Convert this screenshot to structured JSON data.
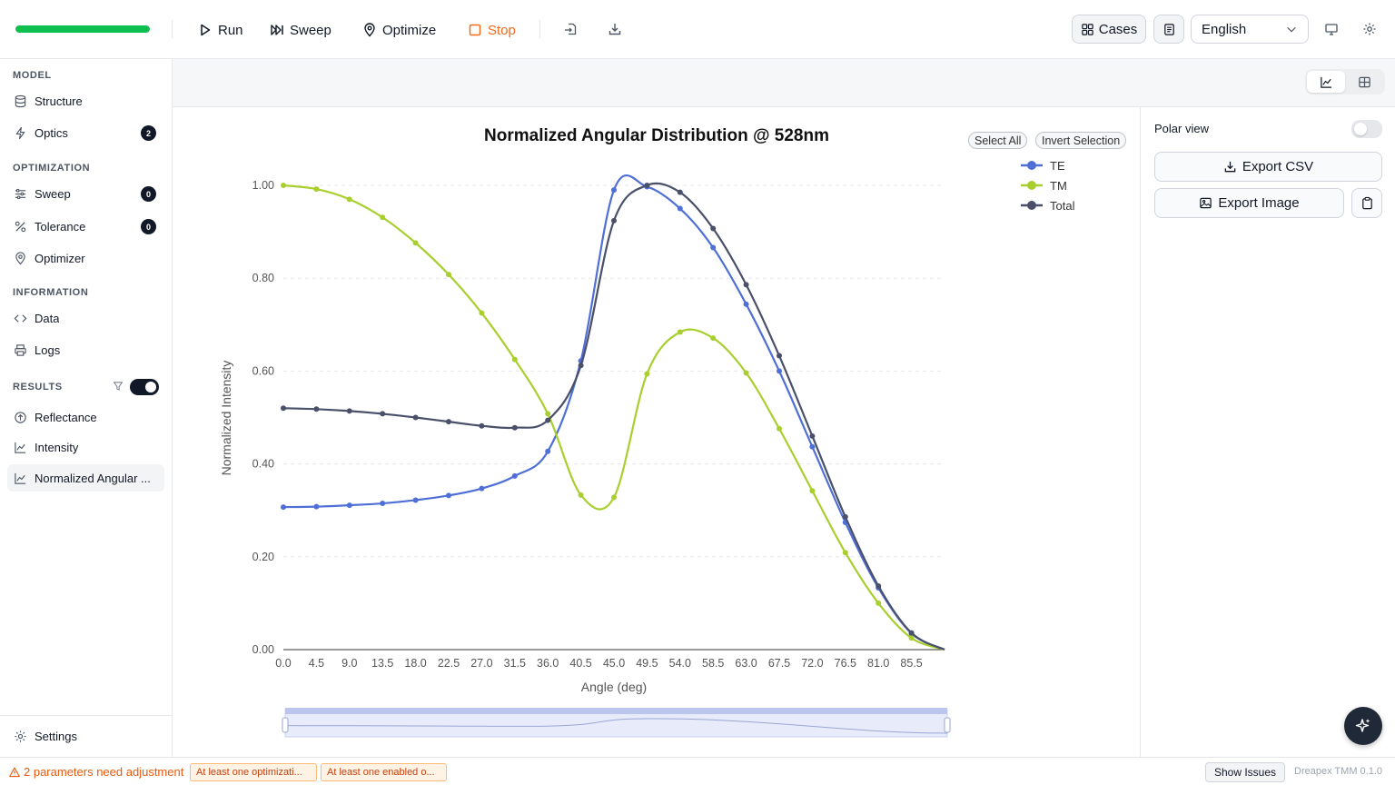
{
  "toolbar": {
    "progress": 1.0,
    "run_label": "Run",
    "sweep_label": "Sweep",
    "optimize_label": "Optimize",
    "stop_label": "Stop",
    "cases_label": "Cases",
    "language": "English"
  },
  "sidebar": {
    "model_heading": "MODEL",
    "structure": "Structure",
    "optics": "Optics",
    "optics_badge": "2",
    "optimization_heading": "OPTIMIZATION",
    "sweep": "Sweep",
    "sweep_badge": "0",
    "tolerance": "Tolerance",
    "tolerance_badge": "0",
    "optimizer": "Optimizer",
    "information_heading": "INFORMATION",
    "data": "Data",
    "logs": "Logs",
    "results_heading": "RESULTS",
    "results_toggle_on": true,
    "reflectance": "Reflectance",
    "intensity": "Intensity",
    "normalized": "Normalized Angular ...",
    "settings": "Settings"
  },
  "chart_controls": {
    "select_all": "Select All",
    "invert_selection": "Invert Selection"
  },
  "right_panel": {
    "polar_view_label": "Polar view",
    "polar_view_on": false,
    "export_csv": "Export CSV",
    "export_image": "Export Image"
  },
  "status_bar": {
    "warning": "2 parameters need adjustment",
    "pill1": "At least one optimizati...",
    "pill2": "At least one enabled o...",
    "show_issues": "Show Issues",
    "version": "Dreapex TMM 0.1.0"
  },
  "colors": {
    "te": "#4f6fd6",
    "tm": "#a8cf2e",
    "total": "#4a4f6a",
    "accent_stop": "#f26a1b",
    "progress": "#0fbf4f"
  },
  "chart_data": {
    "type": "line",
    "title": "Normalized Angular Distribution @ 528nm",
    "xlabel": "Angle (deg)",
    "ylabel": "Normalized Intensity",
    "xlim": [
      0,
      90
    ],
    "ylim": [
      0,
      1
    ],
    "x_ticks": [
      "0.0",
      "4.5",
      "9.0",
      "13.5",
      "18.0",
      "22.5",
      "27.0",
      "31.5",
      "36.0",
      "40.5",
      "45.0",
      "49.5",
      "54.0",
      "58.5",
      "63.0",
      "67.5",
      "72.0",
      "76.5",
      "81.0",
      "85.5"
    ],
    "y_ticks": [
      "0.00",
      "0.20",
      "0.40",
      "0.60",
      "0.80",
      "1.00"
    ],
    "legend_position": "top-right",
    "grid": "horizontal-dashed",
    "x": [
      0,
      4.5,
      9,
      13.5,
      18,
      22.5,
      27,
      31.5,
      36,
      40.5,
      45,
      49.5,
      54,
      58.5,
      63,
      67.5,
      72,
      76.5,
      81,
      85.5
    ],
    "series": [
      {
        "name": "TE",
        "values": [
          0.307,
          0.308,
          0.311,
          0.315,
          0.322,
          0.332,
          0.347,
          0.374,
          0.427,
          0.622,
          0.99,
          0.997,
          0.95,
          0.866,
          0.744,
          0.6,
          0.437,
          0.274,
          0.133,
          0.035
        ]
      },
      {
        "name": "TM",
        "values": [
          1.0,
          0.992,
          0.97,
          0.931,
          0.876,
          0.808,
          0.725,
          0.625,
          0.508,
          0.333,
          0.328,
          0.594,
          0.684,
          0.671,
          0.596,
          0.476,
          0.342,
          0.209,
          0.1,
          0.025
        ]
      },
      {
        "name": "Total",
        "values": [
          0.52,
          0.518,
          0.514,
          0.508,
          0.5,
          0.491,
          0.482,
          0.478,
          0.494,
          0.612,
          0.924,
          1.0,
          0.985,
          0.907,
          0.786,
          0.633,
          0.46,
          0.286,
          0.137,
          0.036
        ]
      }
    ]
  }
}
